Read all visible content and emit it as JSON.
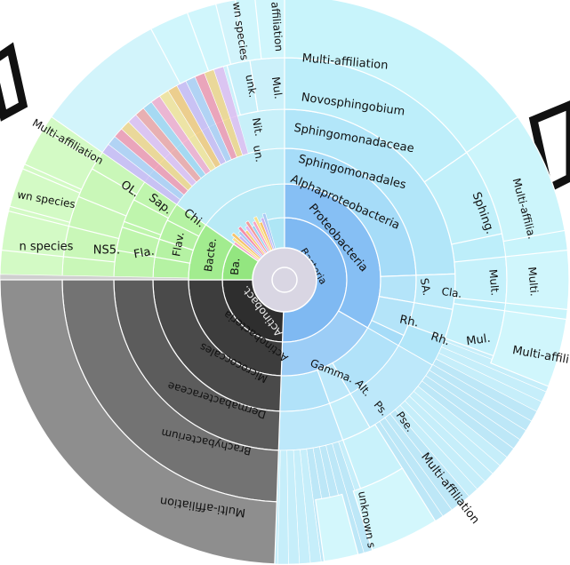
{
  "side_text": [
    ":",
    "y"
  ],
  "colors": {
    "bacteria": "#d9d6e3",
    "proteobacteria": "#7ab8f2",
    "alpha": "#8cc4f5",
    "sphingo_outer": "#c8f4fb",
    "sphingo_mid": "#b9eef8",
    "actino": "#2f2f2f",
    "actino_outer": "#8a8a8a",
    "bacteroidetes": "#9ce98a",
    "bacte_outer": "#c7f7b7"
  },
  "chart_data": {
    "type": "sunburst",
    "title": "",
    "rings": [
      {
        "level": "kingdom",
        "segments": [
          {
            "label": "Bacteria",
            "start": 0,
            "end": 360,
            "color": "#d9d6e3"
          }
        ]
      },
      {
        "level": "phylum",
        "segments": [
          {
            "label": "Proteobacteria",
            "start": 0,
            "end": 182,
            "color": "#7fb9f2"
          },
          {
            "label": "Actinobact.",
            "start": 182,
            "end": 270,
            "color": "#2e2e2e"
          },
          {
            "label": "Ba.",
            "start": 270,
            "end": 305,
            "color": "#93e680"
          }
        ]
      },
      {
        "level": "class",
        "segments": [
          {
            "label": "Alphaproteobacteria",
            "start": 0,
            "end": 120,
            "color": "#86bff4"
          },
          {
            "label": "Gamma.",
            "start": 120,
            "end": 182,
            "color": "#9ccdf6"
          },
          {
            "label": "Actinobacteria",
            "start": 182,
            "end": 270,
            "color": "#3d3d3d"
          },
          {
            "label": "Bacte.",
            "start": 270,
            "end": 305,
            "color": "#a2ec8f"
          }
        ]
      },
      {
        "level": "order",
        "segments": [
          {
            "label": "Sphingomonadales",
            "start": 0,
            "end": 88,
            "color": "#a6dcf8"
          },
          {
            "label": "SA.",
            "start": 88,
            "end": 100,
            "color": "#b4e4f9"
          },
          {
            "label": "Rh.",
            "start": 100,
            "end": 115,
            "color": "#b4e4f9"
          },
          {
            "label": "Alt.",
            "start": 150,
            "end": 160,
            "color": "#bde8fa"
          },
          {
            "label": "Micrococcales",
            "start": 182,
            "end": 270,
            "color": "#4a4a4a"
          },
          {
            "label": "Chi.",
            "start": 288,
            "end": 297,
            "color": "#b5f2a3"
          },
          {
            "label": "Flav.",
            "start": 280,
            "end": 288,
            "color": "#b5f2a3"
          }
        ]
      },
      {
        "level": "family",
        "segments": [
          {
            "label": "Sphingomonadaceae",
            "start": 0,
            "end": 88,
            "color": "#b2e6f9"
          },
          {
            "label": "Cla.",
            "start": 88,
            "end": 100,
            "color": "#bdebfa"
          },
          {
            "label": "Rh.",
            "start": 100,
            "end": 110,
            "color": "#bdebfa"
          },
          {
            "label": "Ps.",
            "start": 150,
            "end": 160,
            "color": "#c4eefa"
          },
          {
            "label": "Dermabacteraceae",
            "start": 182,
            "end": 270,
            "color": "#5c5c5c"
          },
          {
            "label": "Sap.",
            "start": 290,
            "end": 298,
            "color": "#bff5ad"
          },
          {
            "label": "Fla.",
            "start": 280,
            "end": 288,
            "color": "#bff5ad"
          }
        ]
      },
      {
        "level": "genus",
        "segments": [
          {
            "label": "Novosphingobium",
            "start": 0,
            "end": 55,
            "color": "#bdeefa"
          },
          {
            "label": "Sphing.",
            "start": 55,
            "end": 78,
            "color": "#c1f0fa"
          },
          {
            "label": "Mult.",
            "start": 84,
            "end": 96,
            "color": "#c5f1fb"
          },
          {
            "label": "Mul.",
            "start": 98,
            "end": 110,
            "color": "#c5f1fb"
          },
          {
            "label": "Pse.",
            "start": 148,
            "end": 160,
            "color": "#c9f2fb"
          },
          {
            "label": "Brachybacterium",
            "start": 182,
            "end": 270,
            "color": "#737373"
          },
          {
            "label": "OL.",
            "start": 292,
            "end": 300,
            "color": "#c9f7b8"
          },
          {
            "label": "NS5.",
            "start": 276,
            "end": 284,
            "color": "#c9f7b8"
          },
          {
            "label": "Nit.",
            "start": 345,
            "end": 351,
            "color": "#bfeefa"
          },
          {
            "label": "un.",
            "start": 345,
            "end": 351,
            "color": "#c8f0fa"
          }
        ]
      },
      {
        "level": "species",
        "segments": [
          {
            "label": "Multi-affiliation",
            "start": 0,
            "end": 55,
            "color": "#c8f4fb"
          },
          {
            "label": "Multi-affilia.",
            "start": 55,
            "end": 80,
            "color": "#ccf5fb"
          },
          {
            "label": "Multi.",
            "start": 84,
            "end": 96,
            "color": "#d0f6fc"
          },
          {
            "label": "Multi-affili",
            "start": 98,
            "end": 112,
            "color": "#d0f6fc"
          },
          {
            "label": "Multi-affiliation",
            "start": 148,
            "end": 162,
            "color": "#d3f7fc"
          },
          {
            "label": "unknown s",
            "start": 165,
            "end": 172,
            "color": "#d3f7fc"
          },
          {
            "label": "Multi-affiliation",
            "start": 182,
            "end": 270,
            "color": "#8e8e8e"
          },
          {
            "label": "Multi-affiliation",
            "start": 294,
            "end": 302,
            "color": "#d3fac5"
          },
          {
            "label": "wn species",
            "start": 285,
            "end": 293,
            "color": "#d3fac5"
          },
          {
            "label": "n species",
            "start": 276,
            "end": 284,
            "color": "#d3fac5"
          },
          {
            "label": "unk.",
            "start": 340,
            "end": 346,
            "color": "#d0f6fc"
          },
          {
            "label": "Mul.",
            "start": 350,
            "end": 356,
            "color": "#d0f6fc"
          },
          {
            "label": "wn species",
            "start": 332,
            "end": 340,
            "color": "#d0f6fc"
          },
          {
            "label": "affiliation",
            "start": 354,
            "end": 360,
            "color": "#d0f6fc"
          }
        ]
      }
    ],
    "labels_visible": [
      "Bacteria",
      "Proteobacteria",
      "Alphaproteobacteria",
      "Sphingomonadales",
      "Sphingomonadaceae",
      "Novosphingobium",
      "Multi-affiliation",
      "Sphing.",
      "Multi-affilia.",
      "SA.",
      "Cla.",
      "Mult.",
      "Multi.",
      "Rh.",
      "Rh.",
      "Mul.",
      "Multi-affili",
      "Gamma.",
      "Alt.",
      "Ps.",
      "Pse.",
      "Multi-affiliation",
      "unknown s",
      "Actinobact.",
      "Actinobacteria",
      "Micrococcales",
      "Dermabacteraceae",
      "Brachybacterium",
      "Multi-affiliation",
      "Ba.",
      "Bacte.",
      "Flav.",
      "Fla.",
      "NS5.",
      "n species",
      "Chi.",
      "Sap.",
      "OL.",
      "wn species",
      "Multi-affiliation",
      "Nit.",
      "un.",
      "unk.",
      "Mul.",
      "wn species",
      "affiliation"
    ]
  }
}
